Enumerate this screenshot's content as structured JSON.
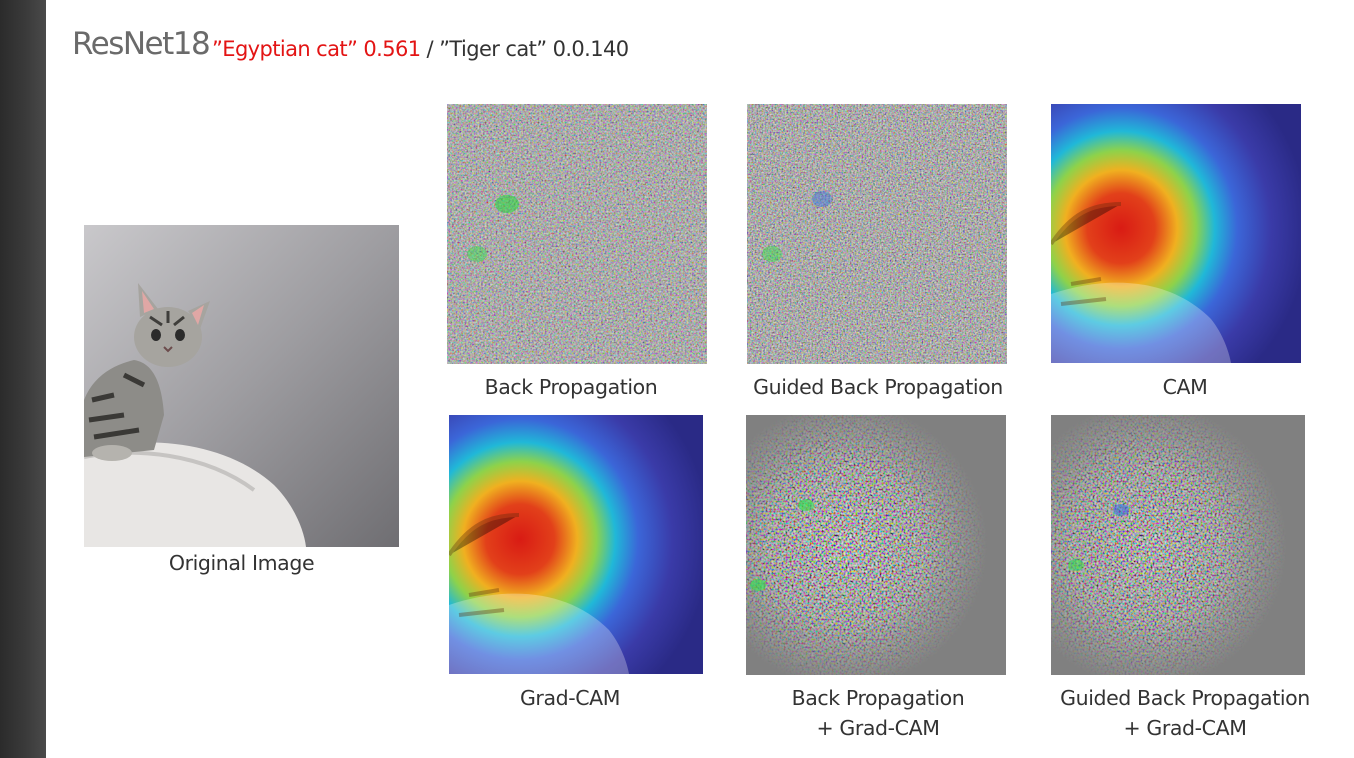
{
  "header": {
    "model": "ResNet18",
    "prediction_top": "”Egyptian cat” 0.561",
    "prediction_sep": " / ",
    "prediction_second": "”Tiger cat” 0.0.140"
  },
  "panels": {
    "original": {
      "caption": "Original Image"
    },
    "backprop": {
      "caption": "Back Propagation"
    },
    "guided_backprop": {
      "caption": "Guided Back Propagation"
    },
    "cam": {
      "caption": "CAM"
    },
    "gradcam": {
      "caption": "Grad-CAM"
    },
    "backprop_gradcam": {
      "caption_line1": "Back Propagation",
      "caption_line2": "+ Grad-CAM"
    },
    "guided_backprop_gradcam": {
      "caption_line1": "Guided Back Propagation",
      "caption_line2": "+ Grad-CAM"
    }
  },
  "colors": {
    "prediction_highlight": "#e31414",
    "sidebar": "#2b2b2b",
    "title": "#6a6a6a"
  }
}
